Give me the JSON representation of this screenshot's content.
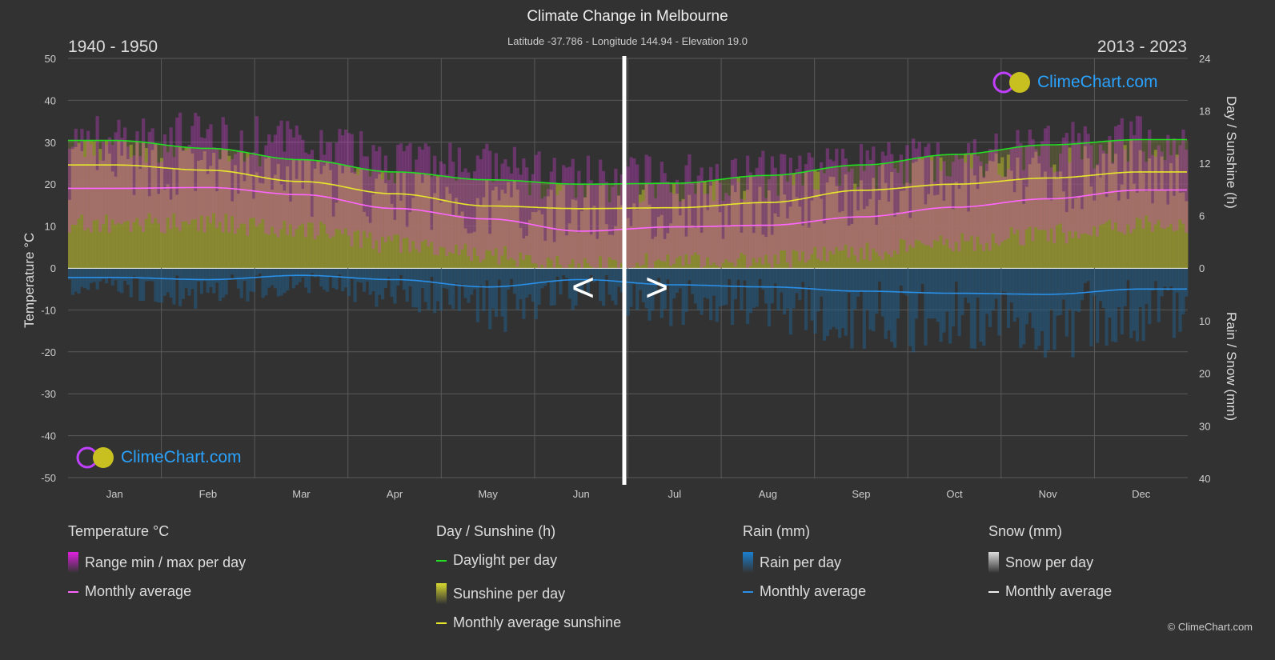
{
  "header": {
    "title": "Climate Change in Melbourne",
    "subtitle": "Latitude -37.786 - Longitude 144.94 - Elevation 19.0",
    "period_left": "1940 - 1950",
    "period_right": "2013 - 2023",
    "nav_prev": "<",
    "nav_next": ">"
  },
  "logo_text": "ClimeChart.com",
  "copyright": "© ClimeChart.com",
  "chart_data": {
    "type": "area",
    "title": "Climate Change in Melbourne",
    "categories": [
      "Jan",
      "Feb",
      "Mar",
      "Apr",
      "May",
      "Jun",
      "Jul",
      "Aug",
      "Sep",
      "Oct",
      "Nov",
      "Dec"
    ],
    "axes": {
      "left": {
        "label": "Temperature °C",
        "range": [
          -50,
          50
        ],
        "ticks": [
          50,
          40,
          30,
          20,
          10,
          0,
          -10,
          -20,
          -30,
          -40,
          -50
        ]
      },
      "right_top": {
        "label": "Day / Sunshine (h)",
        "range": [
          0,
          24
        ],
        "ticks": [
          24,
          18,
          12,
          6,
          0
        ]
      },
      "right_bottom": {
        "label": "Rain / Snow (mm)",
        "range": [
          0,
          40
        ],
        "ticks": [
          0,
          10,
          20,
          30,
          40
        ]
      }
    },
    "grid": true,
    "series": [
      {
        "name": "Monthly average",
        "group": "Temperature °C",
        "color": "#ff66ff",
        "unit": "°C",
        "values": [
          19.0,
          19.2,
          17.5,
          14.2,
          11.7,
          8.8,
          9.8,
          10.2,
          12.2,
          14.5,
          16.5,
          18.6
        ]
      },
      {
        "name": "Daylight per day",
        "group": "Day / Sunshine (h)",
        "color": "#22dd22",
        "unit": "h",
        "values": [
          14.6,
          13.7,
          12.4,
          11.0,
          10.1,
          9.6,
          9.7,
          10.6,
          11.8,
          13.0,
          14.1,
          14.7
        ]
      },
      {
        "name": "Monthly average sunshine",
        "group": "Day / Sunshine (h)",
        "color": "#e6e62a",
        "unit": "h",
        "values": [
          11.8,
          11.2,
          9.9,
          8.5,
          7.1,
          6.8,
          6.9,
          7.5,
          8.9,
          9.6,
          10.3,
          11.0
        ]
      },
      {
        "name": "Monthly average",
        "group": "Rain (mm)",
        "color": "#2a8fe6",
        "unit": "mm",
        "values": [
          1.8,
          2.2,
          1.4,
          2.2,
          3.6,
          2.2,
          3.2,
          3.6,
          4.4,
          4.8,
          5.0,
          4.0
        ]
      }
    ]
  },
  "legend": [
    {
      "heading": "Temperature °C",
      "items": [
        {
          "label": "Range min / max per day",
          "swatch": "box",
          "color": "#e020e0"
        },
        {
          "label": "Monthly average",
          "swatch": "line",
          "color": "#ff66ff"
        }
      ]
    },
    {
      "heading": "Day / Sunshine (h)",
      "items": [
        {
          "label": "Daylight per day",
          "swatch": "line",
          "color": "#22dd22"
        },
        {
          "label": "Sunshine per day",
          "swatch": "box",
          "color": "#d8d830"
        },
        {
          "label": "Monthly average sunshine",
          "swatch": "line",
          "color": "#e6e62a"
        }
      ]
    },
    {
      "heading": "Rain (mm)",
      "items": [
        {
          "label": "Rain per day",
          "swatch": "box",
          "color": "#1a7fd0"
        },
        {
          "label": "Monthly average",
          "swatch": "line",
          "color": "#2a8fe6"
        }
      ]
    },
    {
      "heading": "Snow (mm)",
      "items": [
        {
          "label": "Snow per day",
          "swatch": "box",
          "color": "#dddddd"
        },
        {
          "label": "Monthly average",
          "swatch": "line",
          "color": "#eeeeee"
        }
      ]
    }
  ]
}
